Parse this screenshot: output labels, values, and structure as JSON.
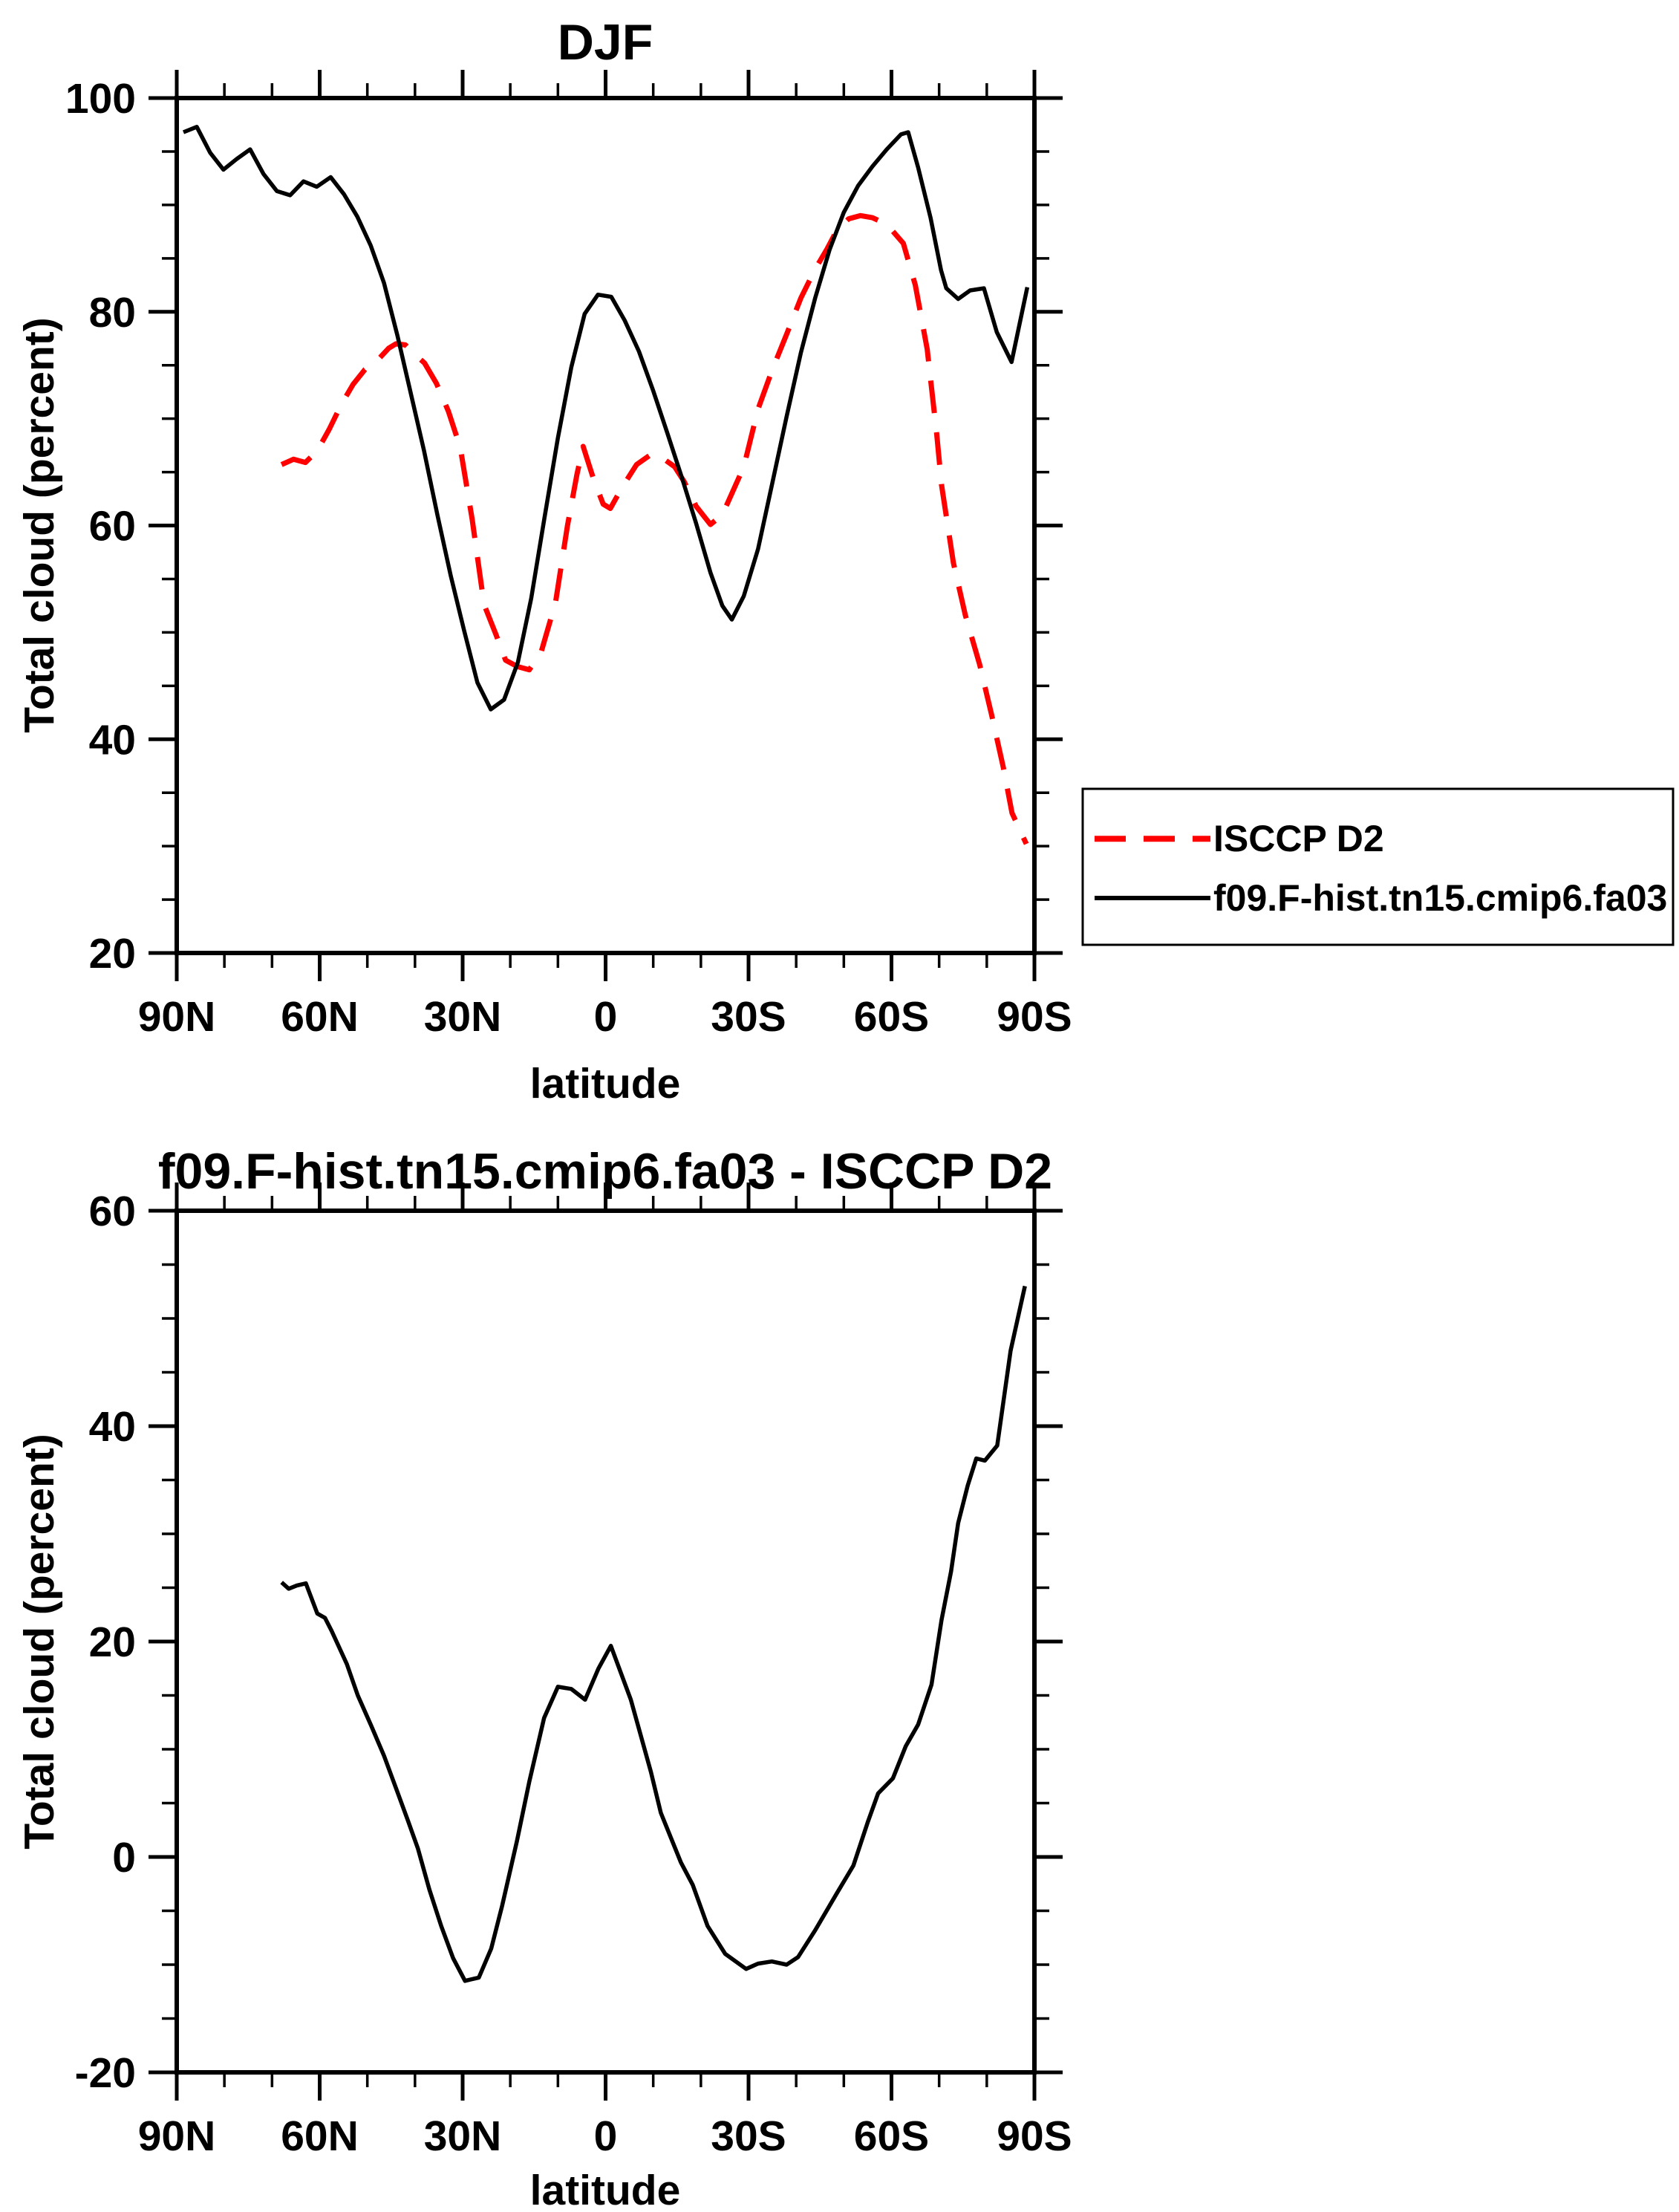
{
  "figure": {
    "background": "#ffffff",
    "text_color": "#000000",
    "accent_red": "#ff0000"
  },
  "chart_data": [
    {
      "id": "djf",
      "type": "line",
      "title": "DJF",
      "xlabel": "latitude",
      "ylabel": "Total cloud (percent)",
      "xlim": [
        90,
        -90
      ],
      "ylim": [
        20,
        100
      ],
      "grid": false,
      "x_ticks": [
        {
          "value": 90,
          "label": "90N"
        },
        {
          "value": 60,
          "label": "60N"
        },
        {
          "value": 30,
          "label": "30N"
        },
        {
          "value": 0,
          "label": "0"
        },
        {
          "value": -30,
          "label": "30S"
        },
        {
          "value": -60,
          "label": "60S"
        },
        {
          "value": -90,
          "label": "90S"
        }
      ],
      "x_minor_step": 10,
      "y_ticks": [
        {
          "value": 100,
          "label": "100"
        },
        {
          "value": 80,
          "label": "80"
        },
        {
          "value": 60,
          "label": "60"
        },
        {
          "value": 40,
          "label": "40"
        },
        {
          "value": 20,
          "label": "20"
        }
      ],
      "y_minor_step": 5,
      "legend": {
        "position": "outside-right",
        "entries": [
          {
            "label": "ISCCP D2",
            "color": "#ff0000",
            "dashed": true
          },
          {
            "label": "f09.F-hist.tn15.cmip6.fa03",
            "color": "#000000",
            "dashed": false
          }
        ]
      },
      "series": [
        {
          "name": "ISCCP D2",
          "id": "isccp-d2",
          "color": "#ff0000",
          "style": "dashed",
          "points": [
            [
              68,
              65.7
            ],
            [
              65.5,
              66.2
            ],
            [
              63,
              65.9
            ],
            [
              60.5,
              67.0
            ],
            [
              58,
              69.0
            ],
            [
              55.5,
              71.3
            ],
            [
              53,
              73.2
            ],
            [
              50.5,
              74.6
            ],
            [
              48,
              75.4
            ],
            [
              45.5,
              76.6
            ],
            [
              44,
              77.0
            ],
            [
              42,
              76.9
            ],
            [
              40.5,
              76.2
            ],
            [
              38,
              75.2
            ],
            [
              35.5,
              73.3
            ],
            [
              33,
              70.7
            ],
            [
              30.5,
              67.3
            ],
            [
              28,
              60.6
            ],
            [
              25.5,
              52.6
            ],
            [
              23,
              49.8
            ],
            [
              21,
              47.4
            ],
            [
              18.5,
              46.8
            ],
            [
              16,
              46.5
            ],
            [
              13.5,
              48.2
            ],
            [
              10.5,
              52.8
            ],
            [
              8,
              60.0
            ],
            [
              6,
              64.8
            ],
            [
              4.7,
              67.4
            ],
            [
              2.5,
              64.3
            ],
            [
              0.5,
              62.0
            ],
            [
              -1,
              61.6
            ],
            [
              -3.5,
              63.6
            ],
            [
              -6.5,
              65.7
            ],
            [
              -9.7,
              66.7
            ],
            [
              -12,
              66.3
            ],
            [
              -14.5,
              65.5
            ],
            [
              -16.5,
              64.1
            ],
            [
              -19,
              61.8
            ],
            [
              -22,
              60.1
            ],
            [
              -24.5,
              61.0
            ],
            [
              -27,
              63.5
            ],
            [
              -29,
              65.5
            ],
            [
              -32,
              70.9
            ],
            [
              -35,
              74.6
            ],
            [
              -38,
              77.9
            ],
            [
              -41,
              81.3
            ],
            [
              -44,
              84.0
            ],
            [
              -46.5,
              85.9
            ],
            [
              -48.5,
              87.6
            ],
            [
              -51,
              88.7
            ],
            [
              -53.5,
              89.0
            ],
            [
              -56,
              88.8
            ],
            [
              -59,
              88.2
            ],
            [
              -62.5,
              86.4
            ],
            [
              -65,
              82.5
            ],
            [
              -67.5,
              76.5
            ],
            [
              -69.5,
              68.5
            ],
            [
              -70.5,
              63.8
            ],
            [
              -73,
              56.5
            ],
            [
              -75.5,
              51.6
            ],
            [
              -78.5,
              47.0
            ],
            [
              -81,
              42.3
            ],
            [
              -83.5,
              37.3
            ],
            [
              -85.3,
              33.1
            ],
            [
              -88.3,
              30.2
            ]
          ]
        },
        {
          "name": "f09.F-hist.tn15.cmip6.fa03",
          "id": "model",
          "color": "#000000",
          "style": "solid",
          "points": [
            [
              88.6,
              96.8
            ],
            [
              85.8,
              97.3
            ],
            [
              83,
              94.9
            ],
            [
              80.2,
              93.3
            ],
            [
              77.4,
              94.3
            ],
            [
              74.6,
              95.2
            ],
            [
              71.8,
              92.9
            ],
            [
              69,
              91.3
            ],
            [
              66.2,
              90.9
            ],
            [
              63.4,
              92.2
            ],
            [
              60.6,
              91.7
            ],
            [
              57.7,
              92.6
            ],
            [
              54.9,
              91.0
            ],
            [
              52.1,
              88.9
            ],
            [
              49.3,
              86.2
            ],
            [
              46.5,
              82.7
            ],
            [
              43.7,
              77.8
            ],
            [
              40.9,
              72.4
            ],
            [
              38.1,
              67.0
            ],
            [
              35.3,
              61.0
            ],
            [
              32.5,
              55.3
            ],
            [
              29.7,
              50.2
            ],
            [
              26.9,
              45.3
            ],
            [
              24.1,
              42.8
            ],
            [
              21.3,
              43.7
            ],
            [
              18.4,
              47.2
            ],
            [
              15.6,
              53.2
            ],
            [
              12.8,
              60.8
            ],
            [
              10,
              68.2
            ],
            [
              7.2,
              74.8
            ],
            [
              4.4,
              79.8
            ],
            [
              1.6,
              81.6
            ],
            [
              -1.2,
              81.4
            ],
            [
              -4,
              79.2
            ],
            [
              -7,
              76.3
            ],
            [
              -10,
              72.6
            ],
            [
              -13,
              68.6
            ],
            [
              -16,
              64.5
            ],
            [
              -19,
              60.2
            ],
            [
              -22,
              55.6
            ],
            [
              -24.5,
              52.5
            ],
            [
              -26.5,
              51.2
            ],
            [
              -29,
              53.4
            ],
            [
              -32,
              57.8
            ],
            [
              -35,
              64.0
            ],
            [
              -38,
              70.2
            ],
            [
              -41,
              76.2
            ],
            [
              -44,
              81.3
            ],
            [
              -47,
              85.8
            ],
            [
              -50,
              89.3
            ],
            [
              -53,
              91.8
            ],
            [
              -56,
              93.6
            ],
            [
              -59,
              95.2
            ],
            [
              -62,
              96.6
            ],
            [
              -63.5,
              96.8
            ],
            [
              -65.6,
              93.5
            ],
            [
              -68.2,
              88.8
            ],
            [
              -70.4,
              83.9
            ],
            [
              -71.5,
              82.2
            ],
            [
              -74,
              81.2
            ],
            [
              -76.5,
              82.0
            ],
            [
              -79.4,
              82.2
            ],
            [
              -82.1,
              78.1
            ],
            [
              -85.2,
              75.3
            ],
            [
              -88.5,
              82.3
            ]
          ]
        }
      ]
    },
    {
      "id": "difference",
      "type": "line",
      "title": "f09.F-hist.tn15.cmip6.fa03 - ISCCP D2",
      "xlabel": "latitude",
      "ylabel": "Total cloud (percent)",
      "xlim": [
        90,
        -90
      ],
      "ylim": [
        -20,
        60
      ],
      "grid": false,
      "x_ticks": [
        {
          "value": 90,
          "label": "90N"
        },
        {
          "value": 60,
          "label": "60N"
        },
        {
          "value": 30,
          "label": "30N"
        },
        {
          "value": 0,
          "label": "0"
        },
        {
          "value": -30,
          "label": "30S"
        },
        {
          "value": -60,
          "label": "60S"
        },
        {
          "value": -90,
          "label": "90S"
        }
      ],
      "x_minor_step": 10,
      "y_ticks": [
        {
          "value": 60,
          "label": "60"
        },
        {
          "value": 40,
          "label": "40"
        },
        {
          "value": 20,
          "label": "20"
        },
        {
          "value": 0,
          "label": "0"
        },
        {
          "value": -20,
          "label": "-20"
        }
      ],
      "y_minor_step": 5,
      "series": [
        {
          "name": "f09.F-hist.tn15.cmip6.fa03 - ISCCP D2",
          "id": "model-minus-isccp",
          "color": "#000000",
          "style": "solid",
          "points": [
            [
              68,
              25.5
            ],
            [
              66.5,
              24.9
            ],
            [
              64.8,
              25.2
            ],
            [
              62.9,
              25.4
            ],
            [
              60.5,
              22.6
            ],
            [
              58.9,
              22.2
            ],
            [
              57.5,
              21.0
            ],
            [
              54.3,
              17.9
            ],
            [
              52,
              15.0
            ],
            [
              49.2,
              12.2
            ],
            [
              46.5,
              9.4
            ],
            [
              44,
              6.4
            ],
            [
              41.5,
              3.4
            ],
            [
              39.4,
              0.8
            ],
            [
              37,
              -3.0
            ],
            [
              34.5,
              -6.4
            ],
            [
              32,
              -9.4
            ],
            [
              29.5,
              -11.5
            ],
            [
              26.6,
              -11.2
            ],
            [
              24,
              -8.5
            ],
            [
              21.7,
              -4.5
            ],
            [
              18.6,
              1.5
            ],
            [
              16,
              7.0
            ],
            [
              12.9,
              12.9
            ],
            [
              10,
              15.8
            ],
            [
              7.2,
              15.6
            ],
            [
              4.3,
              14.6
            ],
            [
              1.5,
              17.5
            ],
            [
              -1.1,
              19.6
            ],
            [
              -5.3,
              14.6
            ],
            [
              -9.5,
              7.9
            ],
            [
              -11.6,
              4.1
            ],
            [
              -15.8,
              -0.5
            ],
            [
              -18.3,
              -2.6
            ],
            [
              -21.4,
              -6.4
            ],
            [
              -25.1,
              -9.0
            ],
            [
              -29.5,
              -10.4
            ],
            [
              -32,
              -9.9
            ],
            [
              -34.9,
              -9.7
            ],
            [
              -38,
              -10.0
            ],
            [
              -40.4,
              -9.3
            ],
            [
              -44,
              -6.8
            ],
            [
              -48.5,
              -3.4
            ],
            [
              -52,
              -0.8
            ],
            [
              -55,
              3.2
            ],
            [
              -57.2,
              5.9
            ],
            [
              -60.3,
              7.3
            ],
            [
              -63,
              10.3
            ],
            [
              -65.6,
              12.3
            ],
            [
              -68.4,
              16.0
            ],
            [
              -70.5,
              22.0
            ],
            [
              -72.5,
              26.5
            ],
            [
              -74,
              31.0
            ],
            [
              -76,
              34.5
            ],
            [
              -77.8,
              37.0
            ],
            [
              -79.6,
              36.8
            ],
            [
              -82.2,
              38.2
            ],
            [
              -85,
              47.0
            ],
            [
              -88,
              53.0
            ]
          ]
        }
      ]
    }
  ]
}
